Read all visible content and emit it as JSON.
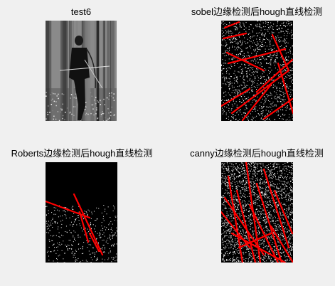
{
  "figure": {
    "panels": [
      {
        "title": "test6",
        "content": "grayscale photo of a person with a bow in a forest"
      },
      {
        "title": "sobel边缘检测后hough直线检测",
        "content": "binary edge map with red Hough lines"
      },
      {
        "title": "Roberts边缘检测后hough直线检测",
        "content": "binary edge map with red Hough lines"
      },
      {
        "title": "canny边缘检测后hough直线检测",
        "content": "binary edge map with red Hough lines"
      }
    ]
  },
  "colors": {
    "background": "#f0f0f0",
    "edge_pixels": "#ffffff",
    "image_background": "#000000",
    "hough_lines": "#ff0000"
  }
}
